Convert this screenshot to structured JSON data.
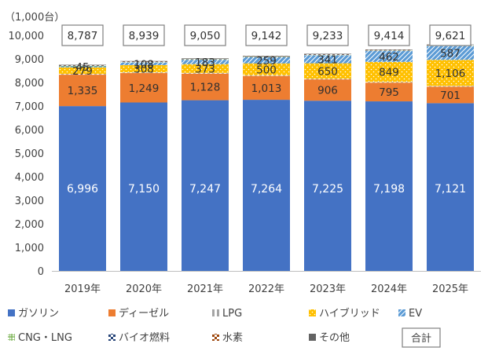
{
  "chart_data": {
    "type": "bar",
    "stacked": true,
    "unit_label": "（1,000台）",
    "categories": [
      "2019年",
      "2020年",
      "2021年",
      "2022年",
      "2023年",
      "2024年",
      "2025年"
    ],
    "ylim": [
      0,
      10000
    ],
    "yticks": [
      "0",
      "1,000",
      "2,000",
      "3,000",
      "4,000",
      "5,000",
      "6,000",
      "7,000",
      "8,000",
      "9,000",
      "10,000"
    ],
    "series": [
      {
        "name": "ガソリン",
        "color": "#4472C4",
        "pattern": "solid",
        "values": [
          6996,
          7150,
          7247,
          7264,
          7225,
          7198,
          7121
        ],
        "labels": [
          "6,996",
          "7,150",
          "7,247",
          "7,264",
          "7,225",
          "7,198",
          "7,121"
        ]
      },
      {
        "name": "ディーゼル",
        "color": "#ED7D31",
        "pattern": "solid",
        "values": [
          1335,
          1249,
          1128,
          1013,
          906,
          795,
          701
        ],
        "labels": [
          "1,335",
          "1,249",
          "1,128",
          "1,013",
          "906",
          "795",
          "701"
        ]
      },
      {
        "name": "LPG",
        "color": "#A5A5A5",
        "pattern": "vlines",
        "values": [
          30,
          30,
          30,
          30,
          30,
          30,
          30
        ],
        "labels": []
      },
      {
        "name": "ハイブリッド",
        "color": "#FFC000",
        "pattern": "dots",
        "values": [
          279,
          308,
          373,
          500,
          650,
          849,
          1106
        ],
        "labels": [
          "279",
          "308",
          "373",
          "500",
          "650",
          "849",
          "1,106"
        ]
      },
      {
        "name": "EV",
        "color": "#5B9BD5",
        "pattern": "diag",
        "values": [
          45,
          108,
          183,
          259,
          341,
          462,
          587
        ],
        "labels": [
          "45",
          "108",
          "183",
          "259",
          "341",
          "462",
          "587"
        ]
      },
      {
        "name": "CNG・LNG",
        "color": "#70AD47",
        "pattern": "grid",
        "values": [
          20,
          20,
          20,
          20,
          20,
          20,
          20
        ],
        "labels": []
      },
      {
        "name": "バイオ燃料",
        "color": "#264478",
        "pattern": "checker",
        "values": [
          20,
          20,
          20,
          20,
          20,
          20,
          20
        ],
        "labels": []
      },
      {
        "name": "水素",
        "color": "#9E480E",
        "pattern": "checker",
        "values": [
          5,
          5,
          5,
          5,
          5,
          5,
          5
        ],
        "labels": []
      },
      {
        "name": "その他",
        "color": "#636363",
        "pattern": "solid",
        "values": [
          20,
          20,
          20,
          20,
          20,
          20,
          20
        ],
        "labels": []
      }
    ],
    "totals": [
      "8,787",
      "8,939",
      "9,050",
      "9,142",
      "9,233",
      "9,414",
      "9,621"
    ],
    "totals_values": [
      8787,
      8939,
      9050,
      9142,
      9233,
      9414,
      9621
    ],
    "total_legend_label": "合計",
    "legend_position": "bottom",
    "grid": false
  }
}
